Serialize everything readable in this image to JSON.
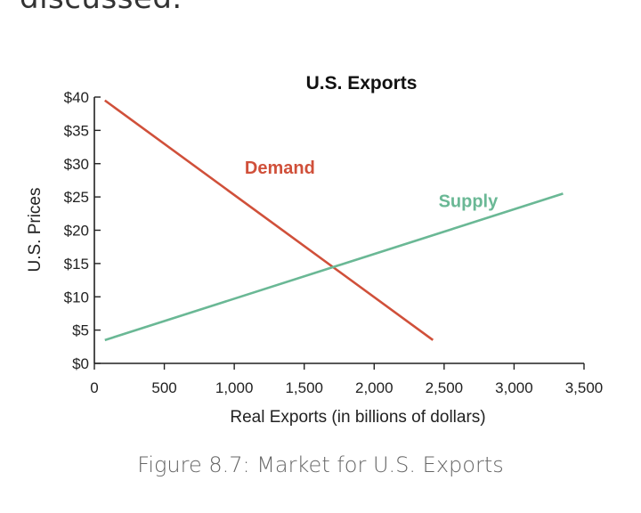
{
  "top_text": "discussed.",
  "caption": "Figure 8.7: Market for U.S. Exports",
  "chart_data": {
    "type": "line",
    "title": "U.S. Exports",
    "xlabel": "Real Exports (in billions of dollars)",
    "ylabel": "U.S. Prices",
    "xlim": [
      0,
      3500
    ],
    "ylim": [
      0,
      40
    ],
    "x_ticks": [
      0,
      500,
      1000,
      1500,
      2000,
      2500,
      3000,
      3500
    ],
    "x_tick_labels": [
      "0",
      "500",
      "1,000",
      "1,500",
      "2,000",
      "2,500",
      "3,000",
      "3,500"
    ],
    "y_ticks": [
      0,
      5,
      10,
      15,
      20,
      25,
      30,
      35,
      40
    ],
    "y_tick_labels": [
      "$0",
      "$5",
      "$10",
      "$15",
      "$20",
      "$25",
      "$30",
      "$35",
      "$40"
    ],
    "grid": false,
    "series": [
      {
        "name": "Demand",
        "color": "#d0503a",
        "x": [
          75,
          2420
        ],
        "y": [
          39.5,
          3.5
        ],
        "label_at": [
          1075,
          28.5
        ]
      },
      {
        "name": "Supply",
        "color": "#6ab895",
        "x": [
          75,
          3350
        ],
        "y": [
          3.5,
          25.5
        ],
        "label_at": [
          2460,
          23.5
        ]
      }
    ]
  }
}
